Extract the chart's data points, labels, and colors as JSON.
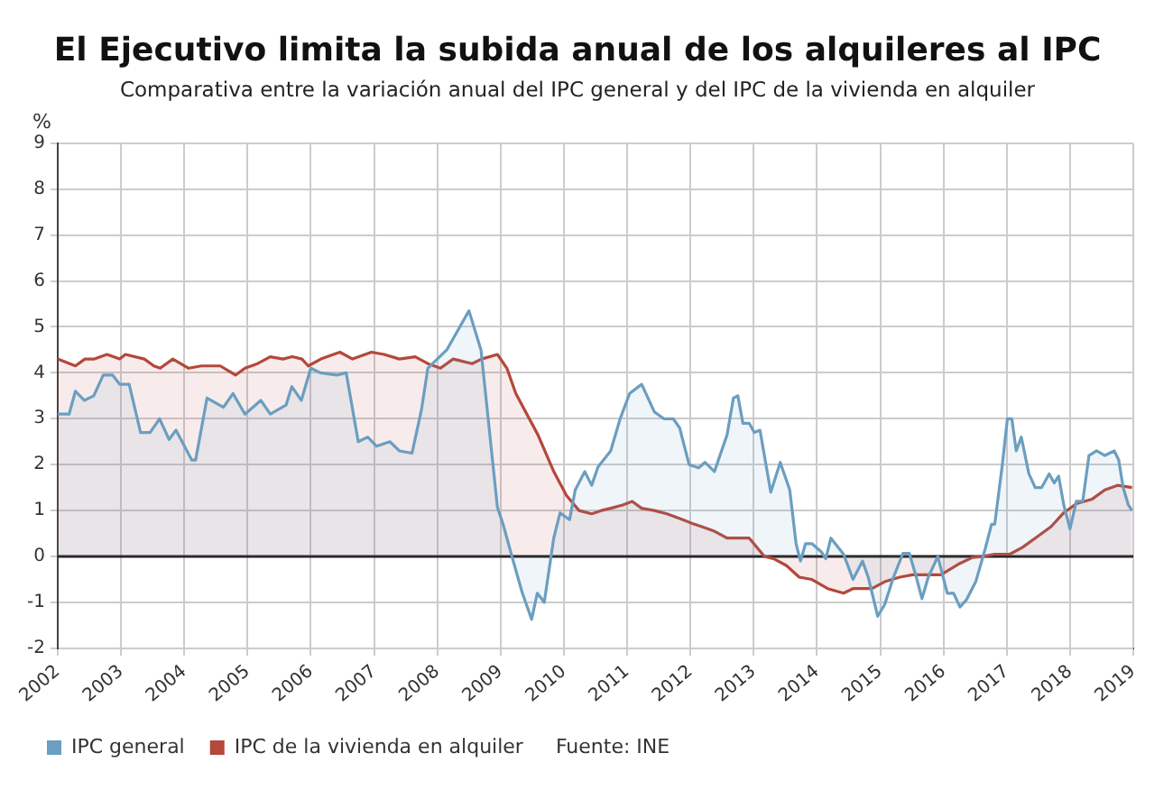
{
  "chart_data": {
    "type": "area",
    "title": "El Ejecutivo limita la subida anual de los alquileres al IPC",
    "subtitle": "Comparativa entre la variación anual del IPC general y del IPC de la vivienda en alquiler",
    "ylabel": "%",
    "xlim": [
      2002,
      2019
    ],
    "xticks": [
      2002,
      2003,
      2004,
      2005,
      2006,
      2007,
      2008,
      2009,
      2010,
      2011,
      2012,
      2013,
      2014,
      2015,
      2016,
      2017,
      2018,
      2019
    ],
    "ylim": [
      -2,
      9
    ],
    "yticks": [
      -2,
      -1,
      0,
      1,
      2,
      3,
      4,
      5,
      6,
      7,
      8,
      9
    ],
    "grid": true,
    "legend": "bottom",
    "marker": "none",
    "line_style": "solid",
    "ref_lines": [
      {
        "axis": "y",
        "value": 0,
        "color": "#222222"
      }
    ],
    "annotations": [
      "Fuente: INE"
    ],
    "series": [
      {
        "name": "IPC general",
        "color": "#6b9ec0",
        "x": [
          2002.0,
          2002.18,
          2002.28,
          2002.42,
          2002.57,
          2002.72,
          2002.87,
          2002.98,
          2003.13,
          2003.31,
          2003.46,
          2003.61,
          2003.76,
          2003.87,
          2004.12,
          2004.18,
          2004.36,
          2004.62,
          2004.77,
          2004.96,
          2005.21,
          2005.36,
          2005.61,
          2005.7,
          2005.85,
          2006.0,
          2006.15,
          2006.41,
          2006.56,
          2006.75,
          2006.9,
          2007.04,
          2007.25,
          2007.4,
          2007.6,
          2007.75,
          2007.85,
          2008.15,
          2008.5,
          2008.69,
          2008.95,
          2009.04,
          2009.19,
          2009.34,
          2009.49,
          2009.58,
          2009.69,
          2009.84,
          2009.94,
          2010.09,
          2010.18,
          2010.33,
          2010.44,
          2010.54,
          2010.74,
          2010.89,
          2011.04,
          2011.23,
          2011.43,
          2011.58,
          2011.73,
          2011.83,
          2011.98,
          2012.13,
          2012.23,
          2012.38,
          2012.58,
          2012.68,
          2012.75,
          2012.83,
          2012.93,
          2013.01,
          2013.1,
          2013.27,
          2013.42,
          2013.57,
          2013.67,
          2013.74,
          2013.82,
          2013.92,
          2014.07,
          2014.14,
          2014.22,
          2014.42,
          2014.57,
          2014.72,
          2014.81,
          2014.96,
          2015.07,
          2015.21,
          2015.36,
          2015.46,
          2015.56,
          2015.66,
          2015.76,
          2015.91,
          2016.06,
          2016.16,
          2016.26,
          2016.36,
          2016.51,
          2016.66,
          2016.76,
          2016.81,
          2016.93,
          2017.01,
          2017.08,
          2017.15,
          2017.23,
          2017.35,
          2017.45,
          2017.55,
          2017.67,
          2017.75,
          2017.82,
          2017.9,
          2018.0,
          2018.1,
          2018.2,
          2018.3,
          2018.42,
          2018.55,
          2018.7,
          2018.77,
          2018.84,
          2018.92,
          2018.98
        ],
        "values": [
          3.1,
          3.1,
          3.6,
          3.4,
          3.5,
          3.95,
          3.95,
          3.75,
          3.75,
          2.7,
          2.7,
          3.0,
          2.55,
          2.75,
          2.1,
          2.1,
          3.45,
          3.25,
          3.55,
          3.1,
          3.4,
          3.1,
          3.3,
          3.7,
          3.4,
          4.1,
          4.0,
          3.95,
          4.0,
          2.5,
          2.6,
          2.4,
          2.5,
          2.3,
          2.25,
          3.2,
          4.1,
          4.5,
          5.35,
          4.5,
          1.07,
          0.7,
          -0.05,
          -0.78,
          -1.37,
          -0.8,
          -1.0,
          0.4,
          0.95,
          0.8,
          1.45,
          1.85,
          1.55,
          1.95,
          2.3,
          3.0,
          3.55,
          3.75,
          3.15,
          3.0,
          3.0,
          2.8,
          2.0,
          1.93,
          2.05,
          1.85,
          2.65,
          3.45,
          3.5,
          2.9,
          2.9,
          2.7,
          2.75,
          1.4,
          2.05,
          1.45,
          0.28,
          -0.1,
          0.28,
          0.28,
          0.1,
          -0.05,
          0.4,
          0.05,
          -0.5,
          -0.1,
          -0.45,
          -1.3,
          -1.05,
          -0.45,
          0.07,
          0.07,
          -0.4,
          -0.92,
          -0.45,
          0.0,
          -0.8,
          -0.8,
          -1.1,
          -0.95,
          -0.55,
          0.17,
          0.7,
          0.7,
          2.0,
          3.0,
          3.0,
          2.3,
          2.6,
          1.8,
          1.5,
          1.5,
          1.8,
          1.6,
          1.75,
          1.13,
          0.6,
          1.2,
          1.2,
          2.2,
          2.3,
          2.2,
          2.3,
          2.1,
          1.5,
          1.13,
          1.0
        ]
      },
      {
        "name": "IPC de la vivienda en alquiler",
        "color": "#b5473b",
        "x": [
          2002.0,
          2002.28,
          2002.43,
          2002.58,
          2002.78,
          2002.98,
          2003.07,
          2003.37,
          2003.52,
          2003.62,
          2003.82,
          2004.07,
          2004.27,
          2004.57,
          2004.81,
          2004.96,
          2005.16,
          2005.36,
          2005.56,
          2005.71,
          2005.86,
          2005.96,
          2006.16,
          2006.46,
          2006.66,
          2006.96,
          2007.16,
          2007.4,
          2007.65,
          2007.85,
          2008.05,
          2008.25,
          2008.55,
          2008.7,
          2008.95,
          2009.1,
          2009.24,
          2009.59,
          2009.84,
          2010.04,
          2010.24,
          2010.44,
          2010.59,
          2010.74,
          2010.93,
          2011.08,
          2011.23,
          2011.43,
          2011.63,
          2011.88,
          2012.03,
          2012.18,
          2012.38,
          2012.58,
          2012.93,
          2013.17,
          2013.32,
          2013.52,
          2013.72,
          2013.92,
          2014.17,
          2014.42,
          2014.57,
          2014.87,
          2015.07,
          2015.31,
          2015.51,
          2015.96,
          2016.26,
          2016.46,
          2016.61,
          2016.81,
          2017.05,
          2017.25,
          2017.45,
          2017.7,
          2017.9,
          2018.1,
          2018.35,
          2018.55,
          2018.75,
          2018.98
        ],
        "values": [
          4.3,
          4.15,
          4.3,
          4.3,
          4.4,
          4.3,
          4.4,
          4.3,
          4.15,
          4.1,
          4.3,
          4.1,
          4.15,
          4.15,
          3.95,
          4.1,
          4.2,
          4.35,
          4.3,
          4.35,
          4.3,
          4.15,
          4.3,
          4.45,
          4.3,
          4.45,
          4.4,
          4.3,
          4.35,
          4.2,
          4.1,
          4.3,
          4.2,
          4.3,
          4.4,
          4.1,
          3.55,
          2.65,
          1.85,
          1.33,
          1.0,
          0.93,
          1.0,
          1.05,
          1.12,
          1.2,
          1.05,
          1.0,
          0.93,
          0.8,
          0.72,
          0.65,
          0.55,
          0.4,
          0.4,
          0.0,
          -0.05,
          -0.2,
          -0.45,
          -0.5,
          -0.7,
          -0.8,
          -0.7,
          -0.7,
          -0.55,
          -0.45,
          -0.4,
          -0.4,
          -0.15,
          -0.02,
          0.0,
          0.05,
          0.05,
          0.2,
          0.4,
          0.65,
          0.95,
          1.15,
          1.25,
          1.45,
          1.55,
          1.5
        ]
      }
    ]
  }
}
